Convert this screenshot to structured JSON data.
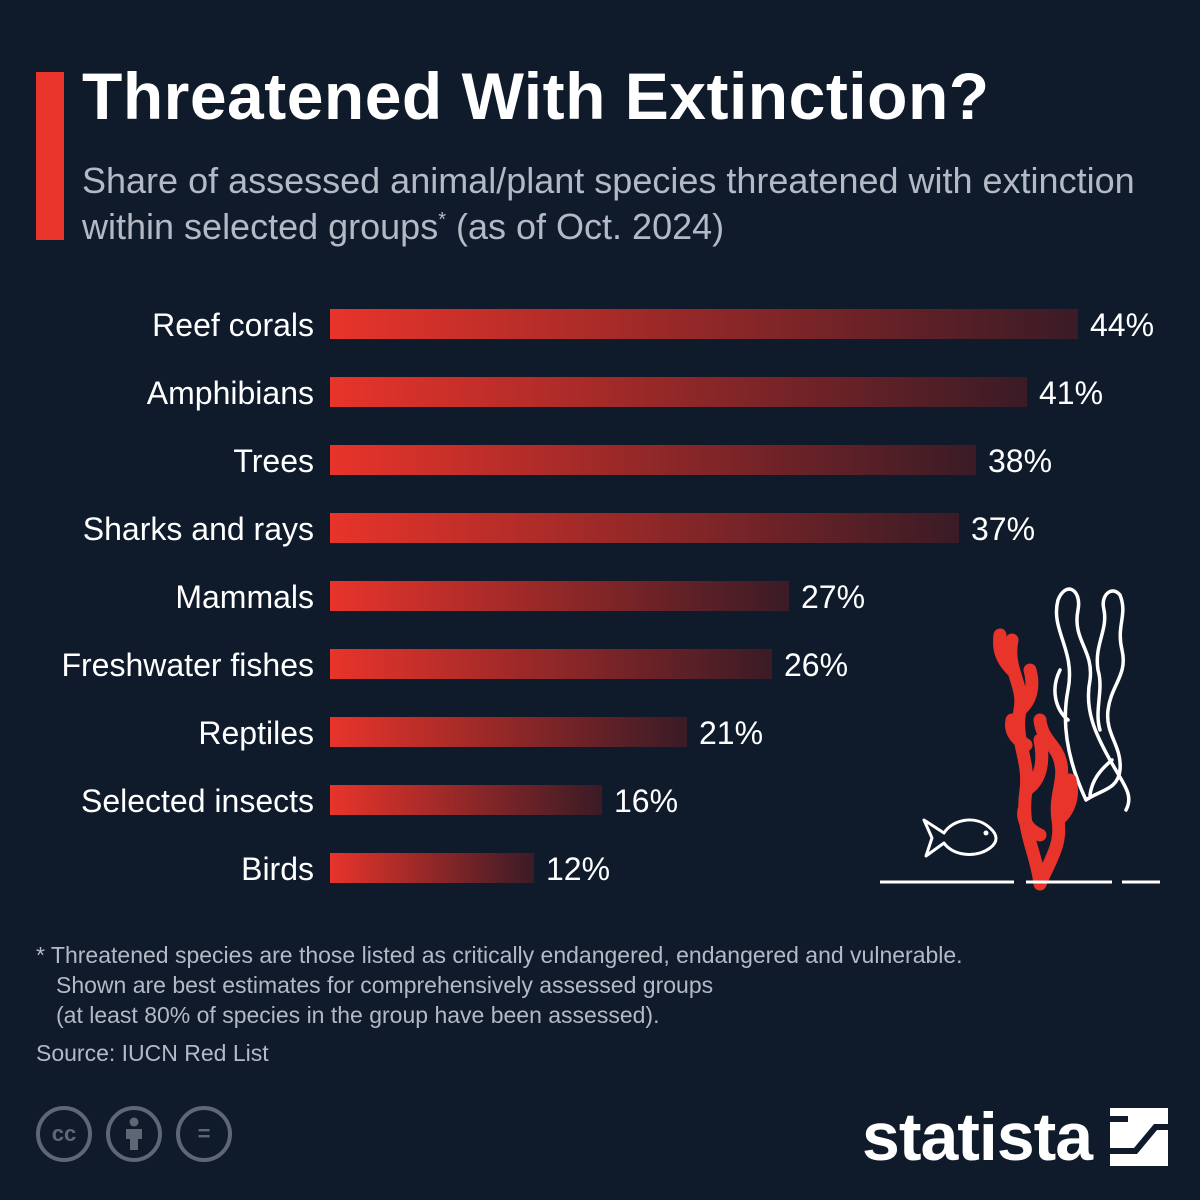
{
  "header": {
    "title": "Threatened With Extinction?",
    "subtitle_main": "Share of assessed animal/plant species threatened with extinction within selected groups",
    "subtitle_mark": "*",
    "subtitle_tail": " (as of Oct. 2024)"
  },
  "chart_data": {
    "type": "bar",
    "orientation": "horizontal",
    "categories": [
      "Reef corals",
      "Amphibians",
      "Trees",
      "Sharks and rays",
      "Mammals",
      "Freshwater fishes",
      "Reptiles",
      "Selected insects",
      "Birds"
    ],
    "values": [
      44,
      41,
      38,
      37,
      27,
      26,
      21,
      16,
      12
    ],
    "value_labels": [
      "44%",
      "41%",
      "38%",
      "37%",
      "27%",
      "26%",
      "21%",
      "16%",
      "12%"
    ],
    "unit": "%",
    "xlim": [
      0,
      44
    ],
    "grid": false,
    "bar_color_start": "#e8342a",
    "bar_color_end": "#3a1b26"
  },
  "footnote": {
    "line1": "* Threatened species are those listed as critically endangered, endangered and vulnerable.",
    "line2": "Shown are best estimates for comprehensively assessed groups",
    "line3": "(at least 80% of species in the group have been assessed)."
  },
  "source": "Source: IUCN Red List",
  "license_icons": [
    "creative-commons-icon",
    "attribution-icon",
    "no-derivatives-icon"
  ],
  "license_labels": {
    "cc": "cc",
    "nd": "="
  },
  "logo": {
    "text": "statista",
    "icon": "statista-logo-icon"
  },
  "colors": {
    "background": "#0f1a2b",
    "accent": "#e8342a",
    "muted_text": "#b3bac5",
    "icon_gray": "#5f6774"
  }
}
